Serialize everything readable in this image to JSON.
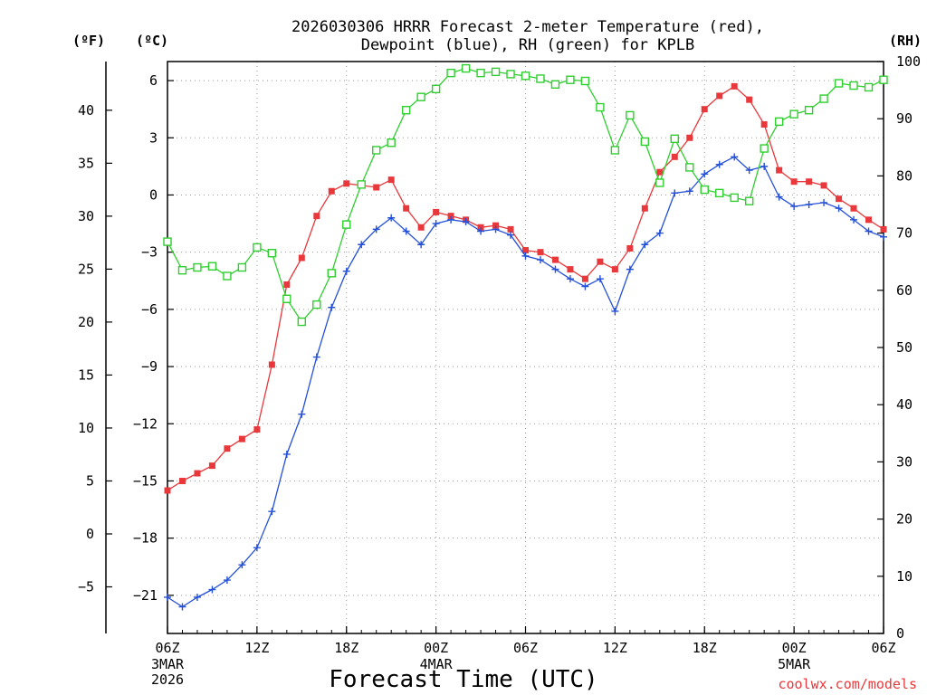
{
  "chart_data": {
    "type": "line",
    "title": "2026030306 HRRR Forecast 2-meter Temperature (red),",
    "title_line2": "Dewpoint (blue), RH (green) for KPLB",
    "xlabel": "Forecast Time (UTC)",
    "credit": "coolwx.com/models",
    "left_unit_f": "(ºF)",
    "left_unit_c": "(ºC)",
    "right_unit": "(RH)",
    "forecast_hours": [
      0,
      48
    ],
    "x_ticks": [
      {
        "hour": 0,
        "label": "06Z",
        "sub1": "3MAR",
        "sub2": "2026"
      },
      {
        "hour": 6,
        "label": "12Z",
        "sub1": "",
        "sub2": ""
      },
      {
        "hour": 12,
        "label": "18Z",
        "sub1": "",
        "sub2": ""
      },
      {
        "hour": 18,
        "label": "00Z",
        "sub1": "4MAR",
        "sub2": ""
      },
      {
        "hour": 24,
        "label": "06Z",
        "sub1": "",
        "sub2": ""
      },
      {
        "hour": 30,
        "label": "12Z",
        "sub1": "",
        "sub2": ""
      },
      {
        "hour": 36,
        "label": "18Z",
        "sub1": "",
        "sub2": ""
      },
      {
        "hour": 42,
        "label": "00Z",
        "sub1": "5MAR",
        "sub2": ""
      },
      {
        "hour": 48,
        "label": "06Z",
        "sub1": "",
        "sub2": ""
      }
    ],
    "celsius_axis": {
      "ylim": [
        -23,
        7
      ],
      "ticks": [
        6,
        3,
        0,
        -3,
        -6,
        -9,
        -12,
        -15,
        -18,
        -21
      ],
      "labels": [
        "6",
        "3",
        "0",
        "−3",
        "−6",
        "−9",
        "−12",
        "−15",
        "−18",
        "−21"
      ]
    },
    "fahrenheit_axis": {
      "ticks": [
        40,
        35,
        30,
        25,
        20,
        15,
        10,
        5,
        0,
        -5
      ],
      "labels": [
        "40",
        "35",
        "30",
        "25",
        "20",
        "15",
        "10",
        "5",
        "0",
        "−5"
      ]
    },
    "rh_axis": {
      "ylim": [
        0,
        100
      ],
      "ticks": [
        100,
        90,
        80,
        70,
        60,
        50,
        40,
        30,
        20,
        10,
        0
      ],
      "labels": [
        "100",
        "90",
        "80",
        "70",
        "60",
        "50",
        "40",
        "30",
        "20",
        "10",
        "0"
      ]
    },
    "series": [
      {
        "name": "Temperature",
        "unit": "C",
        "color": "#e8383b",
        "marker": "filled-square",
        "values": [
          -15.5,
          -15.0,
          -14.6,
          -14.2,
          -13.3,
          -12.8,
          -12.3,
          -8.9,
          -4.7,
          -3.3,
          -1.1,
          0.2,
          0.6,
          0.5,
          0.4,
          0.8,
          -0.7,
          -1.7,
          -0.9,
          -1.1,
          -1.3,
          -1.7,
          -1.6,
          -1.8,
          -2.9,
          -3.0,
          -3.4,
          -3.9,
          -4.4,
          -3.5,
          -3.9,
          -2.8,
          -0.7,
          1.2,
          2.0,
          3.0,
          4.5,
          5.2,
          5.7,
          5.0,
          3.7,
          1.3,
          0.7,
          0.7,
          0.5,
          -0.2,
          -0.7,
          -1.3,
          -1.8
        ]
      },
      {
        "name": "Dewpoint",
        "unit": "C",
        "color": "#2450d8",
        "marker": "plus",
        "values": [
          -21.1,
          -21.6,
          -21.1,
          -20.7,
          -20.2,
          -19.4,
          -18.5,
          -16.6,
          -13.6,
          -11.5,
          -8.5,
          -5.9,
          -4.0,
          -2.6,
          -1.8,
          -1.2,
          -1.9,
          -2.6,
          -1.5,
          -1.3,
          -1.4,
          -1.9,
          -1.8,
          -2.1,
          -3.2,
          -3.4,
          -3.9,
          -4.4,
          -4.8,
          -4.4,
          -6.1,
          -3.9,
          -2.6,
          -2.0,
          0.1,
          0.2,
          1.1,
          1.6,
          2.0,
          1.3,
          1.5,
          -0.1,
          -0.6,
          -0.5,
          -0.4,
          -0.7,
          -1.3,
          -1.9,
          -2.2
        ]
      },
      {
        "name": "RH",
        "unit": "%",
        "color": "#2fcf2f",
        "marker": "open-square",
        "values": [
          68.5,
          63.5,
          64.0,
          64.2,
          62.5,
          64.0,
          67.5,
          66.5,
          58.5,
          54.5,
          57.5,
          63.0,
          71.5,
          78.5,
          84.5,
          85.8,
          91.5,
          93.8,
          95.2,
          98.0,
          98.8,
          98.0,
          98.2,
          97.8,
          97.5,
          97.0,
          96.0,
          96.8,
          96.6,
          92.0,
          84.5,
          90.6,
          86.0,
          78.8,
          86.5,
          81.5,
          77.6,
          77.0,
          76.2,
          75.6,
          84.8,
          89.5,
          90.8,
          91.5,
          93.5,
          96.2,
          95.8,
          95.5,
          96.8
        ]
      }
    ]
  }
}
